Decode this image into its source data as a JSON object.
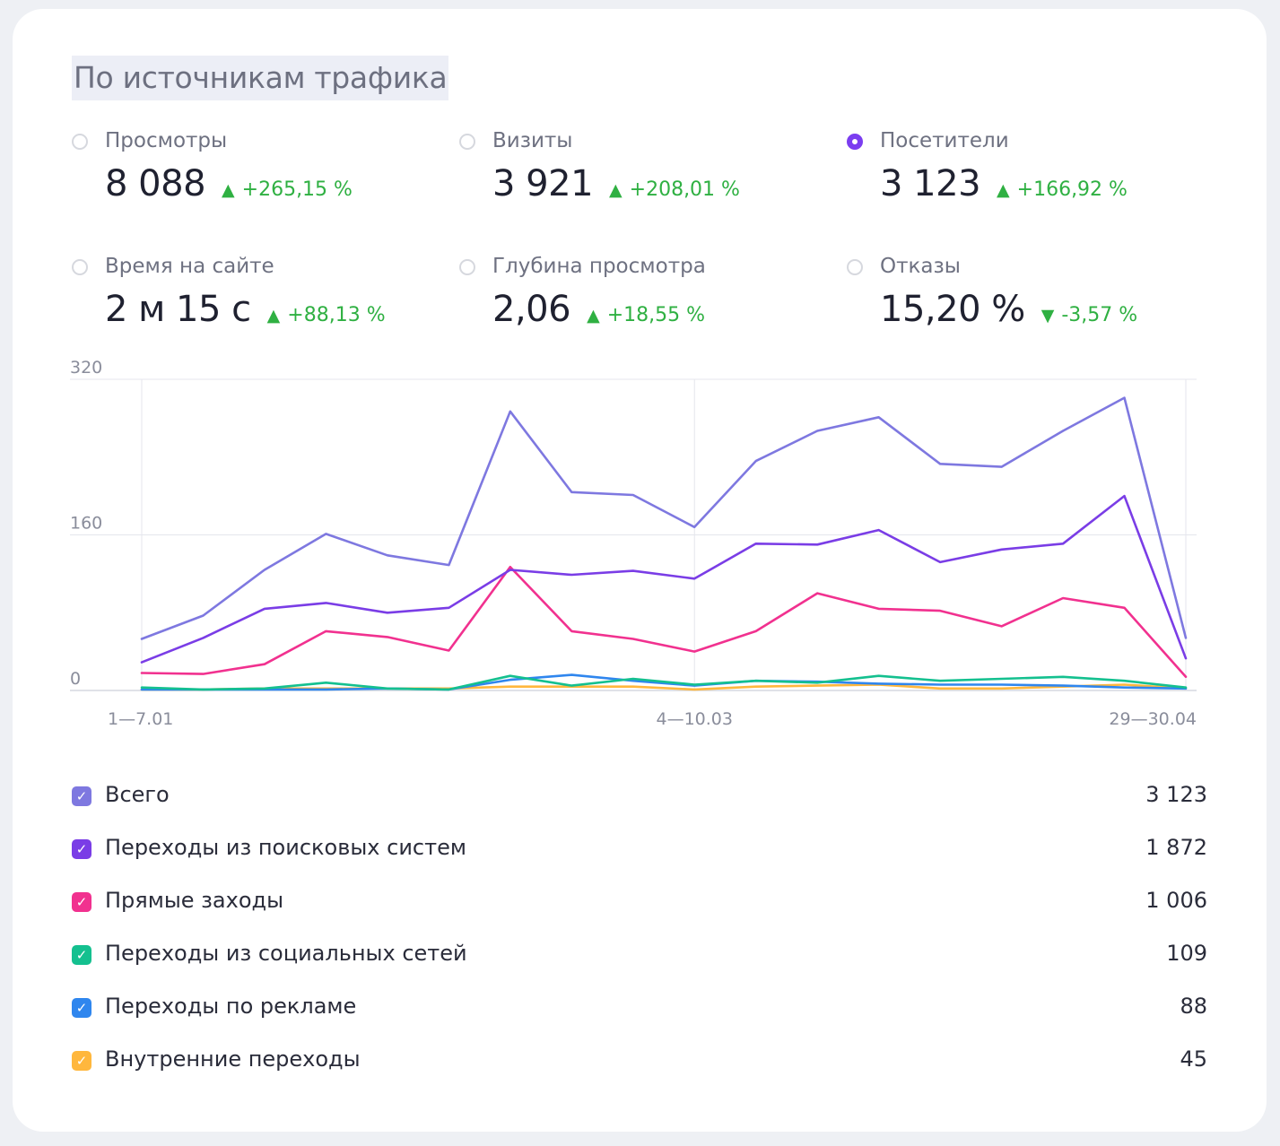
{
  "title": "По источникам трафика",
  "metrics": [
    {
      "label": "Просмотры",
      "value": "8 088",
      "delta": "+265,15 %",
      "dir": "up",
      "selected": false
    },
    {
      "label": "Визиты",
      "value": "3 921",
      "delta": "+208,01 %",
      "dir": "up",
      "selected": false
    },
    {
      "label": "Посетители",
      "value": "3 123",
      "delta": "+166,92 %",
      "dir": "up",
      "selected": true
    },
    {
      "label": "Время на сайте",
      "value": "2 м 15 с",
      "delta": "+88,13 %",
      "dir": "up",
      "selected": false
    },
    {
      "label": "Глубина просмотра",
      "value": "2,06",
      "delta": "+18,55 %",
      "dir": "up",
      "selected": false
    },
    {
      "label": "Отказы",
      "value": "15,20 %",
      "delta": "-3,57 %",
      "dir": "down",
      "selected": false
    }
  ],
  "icons": {
    "up": "triangle-up-icon",
    "down": "triangle-down-icon",
    "check": "checkmark-icon"
  },
  "colors": {
    "positive": "#2fb042",
    "accent": "#7b3df0",
    "grid": "#e3e5eb",
    "axis_text": "#8a8d9b"
  },
  "chart_data": {
    "type": "line",
    "x_tick_labels": [
      "1—7.01",
      "4—10.03",
      "29—30.04"
    ],
    "x_tick_positions": [
      0,
      9,
      17
    ],
    "y_ticks": [
      0,
      160,
      320
    ],
    "ylim": [
      0,
      320
    ],
    "series": [
      {
        "name": "Всего",
        "total": "3 123",
        "color": "#7e78e0",
        "values": [
          53,
          77,
          124,
          161,
          139,
          129,
          287,
          204,
          201,
          168,
          236,
          267,
          281,
          233,
          230,
          267,
          301,
          54
        ]
      },
      {
        "name": "Переходы из поисковых систем",
        "total": "1 872",
        "color": "#7a3de6",
        "values": [
          29,
          54,
          84,
          90,
          80,
          85,
          124,
          119,
          123,
          115,
          151,
          150,
          165,
          132,
          145,
          151,
          200,
          33
        ]
      },
      {
        "name": "Прямые заходы",
        "total": "1 006",
        "color": "#f1318f",
        "values": [
          18,
          17,
          27,
          61,
          55,
          41,
          127,
          61,
          53,
          40,
          61,
          100,
          84,
          82,
          66,
          95,
          85,
          14
        ]
      },
      {
        "name": "Переходы из социальных сетей",
        "total": "109",
        "color": "#14c08f",
        "values": [
          3,
          1,
          2,
          8,
          2,
          1,
          15,
          5,
          12,
          6,
          10,
          8,
          15,
          10,
          12,
          14,
          10,
          3
        ]
      },
      {
        "name": "Переходы по рекламе",
        "total": "88",
        "color": "#2f86ee",
        "values": [
          1,
          1,
          1,
          1,
          2,
          1,
          11,
          16,
          10,
          5,
          10,
          9,
          7,
          6,
          6,
          5,
          3,
          2
        ]
      },
      {
        "name": "Внутренние переходы",
        "total": "45",
        "color": "#ffb73d",
        "values": [
          1,
          1,
          2,
          2,
          2,
          2,
          4,
          4,
          4,
          1,
          4,
          5,
          6,
          2,
          2,
          4,
          6,
          2
        ]
      }
    ]
  }
}
